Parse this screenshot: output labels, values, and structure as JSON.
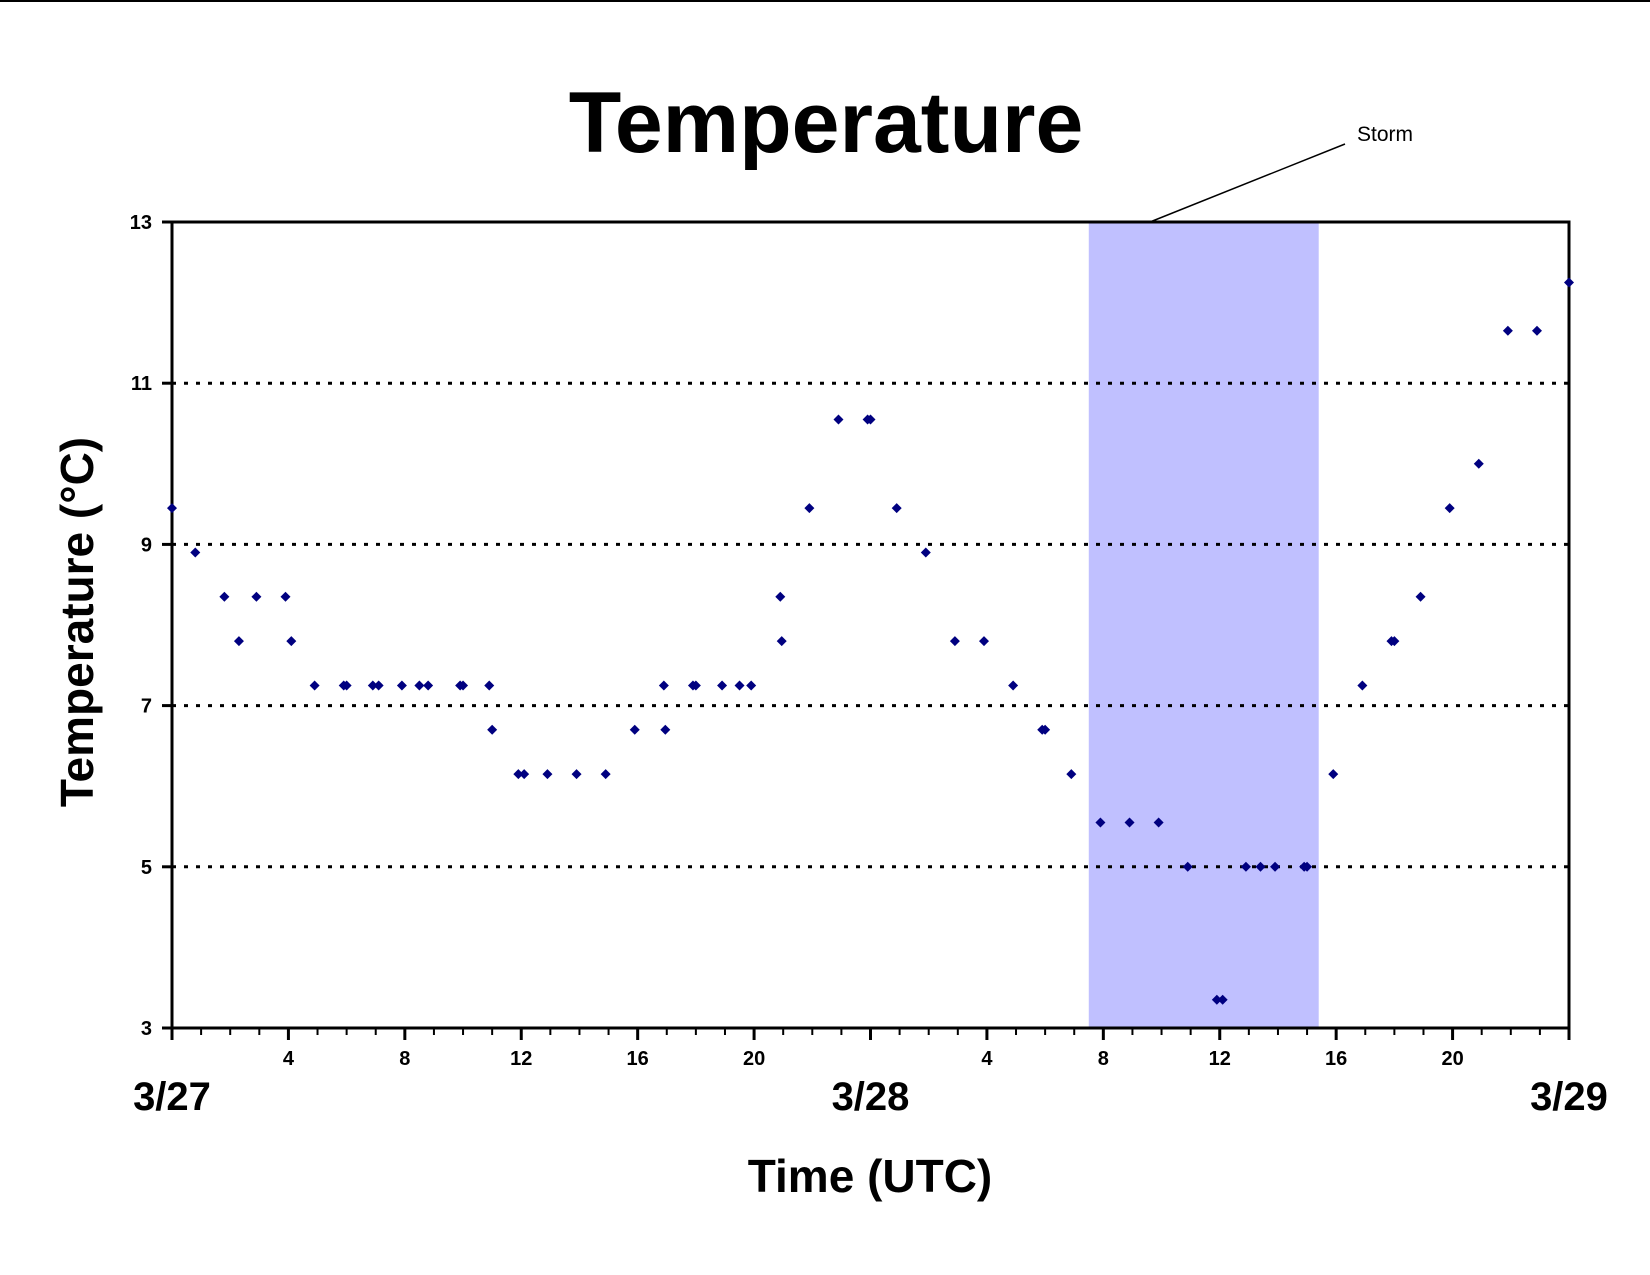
{
  "chart_data": {
    "type": "scatter",
    "title": "Temperature",
    "xlabel": "Time (UTC)",
    "ylabel": "Temperature (°C)",
    "ylim": [
      3,
      13
    ],
    "yticks": [
      3,
      5,
      7,
      9,
      11,
      13
    ],
    "xlim": [
      0,
      48
    ],
    "hour_ticks": [
      {
        "x": 4,
        "label": "4"
      },
      {
        "x": 8,
        "label": "8"
      },
      {
        "x": 12,
        "label": "12"
      },
      {
        "x": 16,
        "label": "16"
      },
      {
        "x": 20,
        "label": "20"
      },
      {
        "x": 28,
        "label": "4"
      },
      {
        "x": 32,
        "label": "8"
      },
      {
        "x": 36,
        "label": "12"
      },
      {
        "x": 40,
        "label": "16"
      },
      {
        "x": 44,
        "label": "20"
      }
    ],
    "date_labels": [
      {
        "x": 0,
        "label": "3/27"
      },
      {
        "x": 24,
        "label": "3/28"
      },
      {
        "x": 48,
        "label": "3/29"
      }
    ],
    "grid": "dotted horizontal at 5, 7, 9, 11",
    "legend": "none",
    "marker_color": "#000080",
    "shaded_region": {
      "label": "Storm",
      "x_start": 31.5,
      "x_end": 39.4,
      "color": "#c0c0ff"
    },
    "series": [
      {
        "x": [
          0,
          0.8,
          1.8,
          2.3,
          2.9,
          3.9,
          4.1,
          4.9,
          5.9,
          6.0,
          6.9,
          7.1,
          7.9,
          8.5,
          8.8,
          9.9,
          10.0,
          10.9,
          11.0,
          11.9,
          12.1,
          12.9,
          13.9,
          14.9,
          15.9,
          16.9,
          16.95,
          17.9,
          18.0,
          18.9,
          19.5,
          19.9,
          20.9,
          20.95,
          21.9,
          22.9,
          23.9,
          24.0,
          24.9,
          25.9,
          26.9,
          27.9,
          28.9,
          29.9,
          30.0,
          30.9,
          31.9,
          32.9,
          33.9,
          34.9,
          35.9,
          36.1,
          36.9,
          37.4,
          37.9,
          38.9,
          39.0,
          39.9,
          40.9,
          41.9,
          42.0,
          42.9,
          43.9,
          44.9,
          45.9,
          46.9,
          48.0
        ],
        "y": [
          9.45,
          8.9,
          8.35,
          7.8,
          8.35,
          8.35,
          7.8,
          7.25,
          7.25,
          7.25,
          7.25,
          7.25,
          7.25,
          7.25,
          7.25,
          7.25,
          7.25,
          7.25,
          6.7,
          6.15,
          6.15,
          6.15,
          6.15,
          6.15,
          6.7,
          7.25,
          6.7,
          7.25,
          7.25,
          7.25,
          7.25,
          7.25,
          8.35,
          7.8,
          9.45,
          10.55,
          10.55,
          10.55,
          9.45,
          8.9,
          7.8,
          7.8,
          7.25,
          6.7,
          6.7,
          6.15,
          5.55,
          5.55,
          5.55,
          5.0,
          3.35,
          3.35,
          5.0,
          5.0,
          5.0,
          5.0,
          5.0,
          6.15,
          7.25,
          7.8,
          7.8,
          8.35,
          9.45,
          10.0,
          11.65,
          11.65,
          12.25
        ]
      }
    ]
  }
}
